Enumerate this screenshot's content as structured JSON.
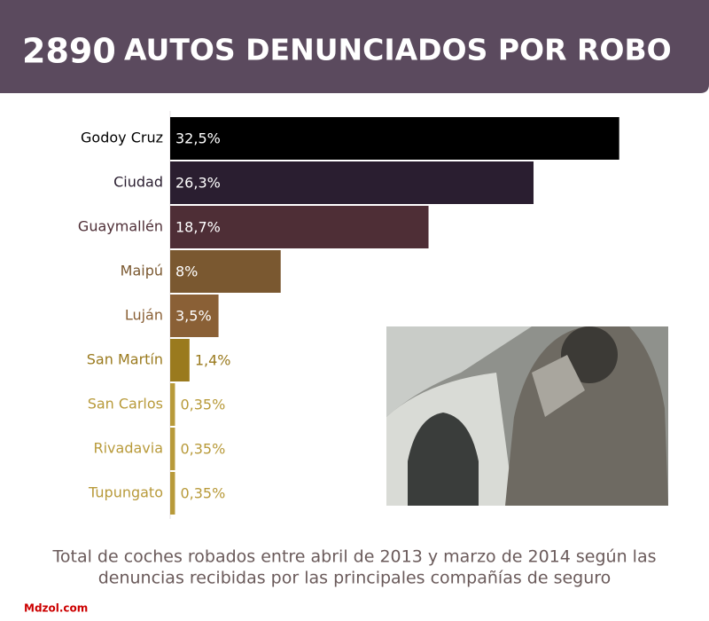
{
  "chart_data": {
    "type": "bar",
    "orientation": "horizontal",
    "title_number": "2890",
    "title": "AUTOS DENUNCIADOS POR ROBO",
    "categories": [
      "Godoy Cruz",
      "Ciudad",
      "Guaymallén",
      "Maipú",
      "Luján",
      "San Martín",
      "San Carlos",
      "Rivadavia",
      "Tupungato"
    ],
    "values": [
      32.5,
      26.3,
      18.7,
      8,
      3.5,
      1.4,
      0.35,
      0.35,
      0.35
    ],
    "value_labels": [
      "32,5%",
      "26,3%",
      "18,7%",
      "8%",
      "3,5%",
      "1,4%",
      "0,35%",
      "0,35%",
      "0,35%"
    ],
    "colors": [
      "#000000",
      "#2a1e30",
      "#4e2e36",
      "#7a5830",
      "#8a6036",
      "#9a7a1e",
      "#b89a3a",
      "#b89a3a",
      "#b89a3a"
    ],
    "xlim": [
      0,
      39
    ],
    "caption": [
      "Total de coches robados entre abril de 2013 y marzo de 2014 según las",
      "denuncias recibidas por las principales compañías de seguro"
    ],
    "source": "Mdzol.com"
  }
}
